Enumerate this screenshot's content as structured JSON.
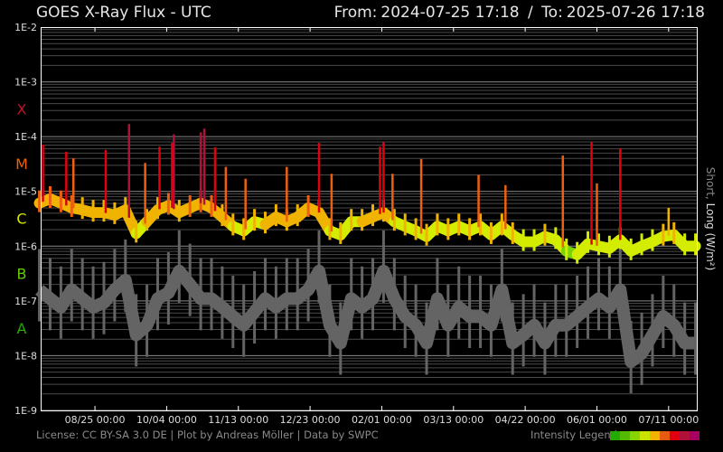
{
  "header": {
    "title": "GOES X-Ray Flux - UTC",
    "from_label": "From:",
    "from": "2024-07-25 17:18",
    "separator": "/",
    "to_label": "To:",
    "to": "2025-07-26 17:18"
  },
  "footer": {
    "license": "License: CC BY-SA 3.0 DE | Plot by Andreas Möller | Data by SWPC",
    "legend_label": "Intensity Legend",
    "legend_colors": [
      "#22aa00",
      "#55bb00",
      "#88d400",
      "#c8e400",
      "#f0b400",
      "#e85a10",
      "#e00010",
      "#b0103a",
      "#a80060"
    ]
  },
  "chart_data": {
    "type": "line",
    "title": "GOES X-Ray Flux - UTC",
    "ylabel": "Short, Long (W/m²)",
    "ylabel_parts": {
      "short": "Short,",
      "long": "Long (W/m²)"
    },
    "yscale": "log",
    "ylim": [
      1e-09,
      0.01
    ],
    "xlim": [
      "2024-07-25 17:18",
      "2025-07-26 17:18"
    ],
    "grid": true,
    "y_ticks": [
      {
        "value": 0.01,
        "label": "1E-2"
      },
      {
        "value": 0.001,
        "label": "1E-3"
      },
      {
        "value": 0.0001,
        "label": "1E-4"
      },
      {
        "value": 1e-05,
        "label": "1E-5"
      },
      {
        "value": 1e-06,
        "label": "1E-6"
      },
      {
        "value": 1e-07,
        "label": "1E-7"
      },
      {
        "value": 1e-08,
        "label": "1E-8"
      },
      {
        "value": 1e-09,
        "label": "1E-9"
      }
    ],
    "flare_classes": [
      {
        "label": "X",
        "value": 0.00032,
        "color": "#c0102a"
      },
      {
        "label": "M",
        "value": 3.2e-05,
        "color": "#f06000"
      },
      {
        "label": "C",
        "value": 3.2e-06,
        "color": "#d8e800"
      },
      {
        "label": "B",
        "value": 3.2e-07,
        "color": "#66cc00"
      },
      {
        "label": "A",
        "value": 3.2e-08,
        "color": "#22aa00"
      }
    ],
    "x_ticks": [
      {
        "date": "2024-08-25",
        "label": "08/25 00:00"
      },
      {
        "date": "2024-10-04",
        "label": "10/04 00:00"
      },
      {
        "date": "2024-11-13",
        "label": "11/13 00:00"
      },
      {
        "date": "2024-12-23",
        "label": "12/23 00:00"
      },
      {
        "date": "2025-02-01",
        "label": "02/01 00:00"
      },
      {
        "date": "2025-03-13",
        "label": "03/13 00:00"
      },
      {
        "date": "2025-04-22",
        "label": "04/22 00:00"
      },
      {
        "date": "2025-06-01",
        "label": "06/01 00:00"
      },
      {
        "date": "2025-07-11",
        "label": "07/11 00:00"
      }
    ],
    "series": [
      {
        "name": "Long",
        "color": "by-intensity",
        "x": [
          "2024-07-25",
          "2024-07-31",
          "2024-08-06",
          "2024-08-12",
          "2024-08-18",
          "2024-08-24",
          "2024-08-30",
          "2024-09-05",
          "2024-09-11",
          "2024-09-17",
          "2024-09-23",
          "2024-09-29",
          "2024-10-05",
          "2024-10-11",
          "2024-10-17",
          "2024-10-23",
          "2024-10-29",
          "2024-11-04",
          "2024-11-10",
          "2024-11-16",
          "2024-11-22",
          "2024-11-28",
          "2024-12-04",
          "2024-12-10",
          "2024-12-16",
          "2024-12-22",
          "2024-12-28",
          "2025-01-03",
          "2025-01-09",
          "2025-01-15",
          "2025-01-21",
          "2025-01-27",
          "2025-02-02",
          "2025-02-08",
          "2025-02-14",
          "2025-02-20",
          "2025-02-26",
          "2025-03-04",
          "2025-03-10",
          "2025-03-16",
          "2025-03-22",
          "2025-03-28",
          "2025-04-03",
          "2025-04-09",
          "2025-04-15",
          "2025-04-21",
          "2025-04-27",
          "2025-05-03",
          "2025-05-09",
          "2025-05-15",
          "2025-05-21",
          "2025-05-27",
          "2025-06-02",
          "2025-06-08",
          "2025-06-14",
          "2025-06-20",
          "2025-06-26",
          "2025-07-02",
          "2025-07-08",
          "2025-07-14",
          "2025-07-20",
          "2025-07-26"
        ],
        "y": [
          6.1e-06,
          7.3e-06,
          6.1e-06,
          5e-06,
          4.6e-06,
          4.1e-06,
          4.1e-06,
          3.7e-06,
          4.6e-06,
          1.7e-06,
          2.8e-06,
          4.6e-06,
          5.5e-06,
          4.1e-06,
          5e-06,
          6.1e-06,
          5e-06,
          3.4e-06,
          2.3e-06,
          1.9e-06,
          2.8e-06,
          2.5e-06,
          3.4e-06,
          2.8e-06,
          3.4e-06,
          5e-06,
          4.1e-06,
          1.9e-06,
          1.6e-06,
          2.8e-06,
          2.8e-06,
          3.4e-06,
          4.1e-06,
          2.8e-06,
          2.3e-06,
          1.9e-06,
          1.5e-06,
          2.3e-06,
          1.9e-06,
          2.3e-06,
          1.9e-06,
          2.3e-06,
          1.6e-06,
          2.3e-06,
          1.6e-06,
          1.2e-06,
          1.2e-06,
          1.5e-06,
          1.3e-06,
          8.1e-07,
          7e-07,
          1.1e-06,
          1e-06,
          9.1e-07,
          1.3e-06,
          8.1e-07,
          1e-06,
          1.2e-06,
          1.5e-06,
          1.6e-06,
          1e-06,
          1e-06
        ]
      },
      {
        "name": "Short",
        "color": "#646464",
        "x": [
          "2024-07-25",
          "2024-07-31",
          "2024-08-06",
          "2024-08-12",
          "2024-08-18",
          "2024-08-24",
          "2024-08-30",
          "2024-09-05",
          "2024-09-11",
          "2024-09-17",
          "2024-09-23",
          "2024-09-29",
          "2024-10-05",
          "2024-10-11",
          "2024-10-17",
          "2024-10-23",
          "2024-10-29",
          "2024-11-04",
          "2024-11-10",
          "2024-11-16",
          "2024-11-22",
          "2024-11-28",
          "2024-12-04",
          "2024-12-10",
          "2024-12-16",
          "2024-12-22",
          "2024-12-28",
          "2025-01-03",
          "2025-01-09",
          "2025-01-15",
          "2025-01-21",
          "2025-01-27",
          "2025-02-02",
          "2025-02-08",
          "2025-02-14",
          "2025-02-20",
          "2025-02-26",
          "2025-03-04",
          "2025-03-10",
          "2025-03-16",
          "2025-03-22",
          "2025-03-28",
          "2025-04-03",
          "2025-04-09",
          "2025-04-15",
          "2025-04-21",
          "2025-04-27",
          "2025-05-03",
          "2025-05-09",
          "2025-05-15",
          "2025-05-21",
          "2025-05-27",
          "2025-06-02",
          "2025-06-08",
          "2025-06-14",
          "2025-06-20",
          "2025-06-26",
          "2025-07-02",
          "2025-07-08",
          "2025-07-14",
          "2025-07-20",
          "2025-07-26"
        ],
        "y": [
          1.6e-07,
          1.1e-07,
          7.7e-08,
          1.6e-07,
          1.1e-07,
          7.7e-08,
          9.3e-08,
          1.6e-07,
          2.4e-07,
          2.4e-08,
          3.6e-08,
          1.1e-07,
          1.4e-07,
          3.5e-07,
          2e-07,
          1.1e-07,
          1.1e-07,
          7.7e-08,
          5.2e-08,
          3.6e-08,
          6.3e-08,
          1.1e-07,
          7.7e-08,
          1.1e-07,
          1.1e-07,
          1.6e-07,
          3.5e-07,
          3.6e-08,
          1.7e-08,
          1.1e-07,
          7.7e-08,
          1.1e-07,
          3.5e-07,
          1.1e-07,
          5.2e-08,
          3.6e-08,
          1.7e-08,
          1.1e-07,
          3.6e-08,
          7.7e-08,
          5.2e-08,
          5.2e-08,
          3.6e-08,
          1.6e-07,
          1.7e-08,
          2.4e-08,
          3.6e-08,
          1.7e-08,
          3.6e-08,
          3.6e-08,
          5.2e-08,
          7.7e-08,
          1.1e-07,
          7.7e-08,
          1.6e-07,
          7.8e-09,
          1.1e-08,
          2.4e-08,
          5.2e-08,
          3.6e-08,
          1.7e-08,
          1.7e-08
        ]
      }
    ],
    "flares": [
      {
        "date": "2024-07-27",
        "peak": 7.2e-05
      },
      {
        "date": "2024-08-09",
        "peak": 5.3e-05
      },
      {
        "date": "2024-08-13",
        "peak": 4e-05
      },
      {
        "date": "2024-08-31",
        "peak": 5.7e-05
      },
      {
        "date": "2024-09-13",
        "peak": 0.00017
      },
      {
        "date": "2024-09-22",
        "peak": 3.3e-05
      },
      {
        "date": "2024-09-30",
        "peak": 6.6e-05
      },
      {
        "date": "2024-10-07",
        "peak": 7.7e-05
      },
      {
        "date": "2024-10-08",
        "peak": 0.00011
      },
      {
        "date": "2024-10-23",
        "peak": 0.00012
      },
      {
        "date": "2024-10-25",
        "peak": 0.00014
      },
      {
        "date": "2024-10-31",
        "peak": 6.4e-05
      },
      {
        "date": "2024-11-06",
        "peak": 2.8e-05
      },
      {
        "date": "2024-11-17",
        "peak": 1.7e-05
      },
      {
        "date": "2024-12-10",
        "peak": 2.8e-05
      },
      {
        "date": "2024-12-28",
        "peak": 7.7e-05
      },
      {
        "date": "2025-01-04",
        "peak": 2.1e-05
      },
      {
        "date": "2025-01-31",
        "peak": 6.6e-05
      },
      {
        "date": "2025-02-02",
        "peak": 8e-05
      },
      {
        "date": "2025-02-07",
        "peak": 2.1e-05
      },
      {
        "date": "2025-02-23",
        "peak": 3.9e-05
      },
      {
        "date": "2025-03-27",
        "peak": 2e-05
      },
      {
        "date": "2025-04-11",
        "peak": 1.3e-05
      },
      {
        "date": "2025-05-13",
        "peak": 4.5e-05
      },
      {
        "date": "2025-05-29",
        "peak": 8e-05
      },
      {
        "date": "2025-06-01",
        "peak": 1.4e-05
      },
      {
        "date": "2025-06-14",
        "peak": 6.1e-05
      },
      {
        "date": "2025-07-11",
        "peak": 5e-06
      }
    ]
  }
}
